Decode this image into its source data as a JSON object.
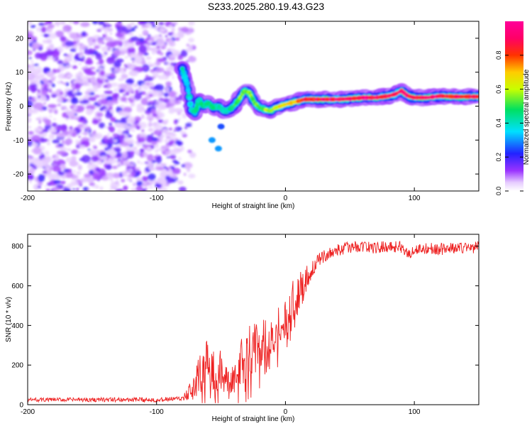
{
  "title": "S233.2025.280.19.43.G23",
  "colors": {
    "snr_line": "#ee2222",
    "axis": "#000000",
    "background": "#ffffff"
  },
  "chart_data": [
    {
      "type": "heatmap",
      "name": "spectrogram",
      "xlabel": "Height of straight line (km)",
      "ylabel": "Frequency (Hz)",
      "xlim": [
        -200,
        150
      ],
      "ylim": [
        -25,
        25
      ],
      "xticks": [
        -200,
        -100,
        0,
        100
      ],
      "xtick_labels": [
        "-200",
        "-100",
        "0",
        "100"
      ],
      "yticks": [
        -20,
        -10,
        0,
        10,
        20
      ],
      "ytick_labels": [
        "-20",
        "-10",
        "0",
        "10",
        "20"
      ],
      "colorbar": {
        "label": "Normalized spectral amplitude",
        "range": [
          0,
          1
        ],
        "ticks": [
          0.0,
          0.2,
          0.4,
          0.6,
          0.8
        ],
        "tick_labels": [
          "0.0",
          "0.2",
          "0.4",
          "0.6",
          "0.8"
        ]
      },
      "noise_region_x": [
        -200,
        -78
      ],
      "ridge": {
        "x": [
          -80,
          -76,
          -73,
          -70,
          -67,
          -64,
          -60,
          -56,
          -52,
          -48,
          -44,
          -40,
          -36,
          -32,
          -28,
          -24,
          -20,
          -16,
          -12,
          -8,
          -4,
          0,
          5,
          10,
          15,
          20,
          30,
          40,
          50,
          60,
          70,
          80,
          85,
          90,
          95,
          100,
          110,
          120,
          130,
          140,
          150
        ],
        "freq": [
          11,
          6,
          -1,
          -2,
          2,
          0,
          1,
          -0.5,
          0,
          -1.5,
          -1,
          0,
          2,
          4.5,
          4,
          1,
          -0.5,
          -1,
          -1.5,
          -0.5,
          0,
          0.5,
          1,
          1.5,
          2,
          2,
          2,
          2,
          2.2,
          2.5,
          2.5,
          3,
          3.5,
          4.5,
          3,
          2.5,
          2.5,
          3,
          2.8,
          2.8,
          2.8
        ],
        "amplitude": [
          0.45,
          0.35,
          0.4,
          0.5,
          0.45,
          0.5,
          0.45,
          0.5,
          0.45,
          0.4,
          0.45,
          0.5,
          0.55,
          0.55,
          0.6,
          0.55,
          0.55,
          0.6,
          0.6,
          0.65,
          0.7,
          0.7,
          0.75,
          0.8,
          0.85,
          0.9,
          0.95,
          0.95,
          0.9,
          0.95,
          0.95,
          0.95,
          0.9,
          0.95,
          0.95,
          0.9,
          0.95,
          0.95,
          0.9,
          0.95,
          0.9
        ]
      },
      "spots": [
        {
          "x": -57,
          "freq": -10,
          "amplitude": 0.3
        },
        {
          "x": -52,
          "freq": -12.5,
          "amplitude": 0.3
        },
        {
          "x": -50,
          "freq": -6,
          "amplitude": 0.25
        }
      ]
    },
    {
      "type": "line",
      "name": "snr",
      "xlabel": "Height of straight line (km)",
      "ylabel": "SNR (10 * v/v)",
      "xlim": [
        -200,
        150
      ],
      "ylim": [
        0,
        860
      ],
      "xticks": [
        -200,
        -100,
        0,
        100
      ],
      "xtick_labels": [
        "-200",
        "-100",
        "0",
        "100"
      ],
      "yticks": [
        0,
        200,
        400,
        600,
        800
      ],
      "ytick_labels": [
        "0",
        "200",
        "400",
        "600",
        "800"
      ],
      "trend": {
        "x": [
          -200,
          -150,
          -100,
          -80,
          -75,
          -70,
          -65,
          -60,
          -55,
          -50,
          -45,
          -40,
          -35,
          -30,
          -25,
          -20,
          -15,
          -10,
          -5,
          0,
          5,
          10,
          15,
          20,
          25,
          30,
          40,
          50,
          60,
          70,
          80,
          90,
          95,
          100,
          110,
          120,
          130,
          150
        ],
        "y": [
          25,
          25,
          25,
          30,
          60,
          100,
          150,
          200,
          150,
          180,
          120,
          150,
          200,
          250,
          280,
          300,
          320,
          340,
          380,
          420,
          480,
          560,
          620,
          680,
          720,
          750,
          780,
          795,
          800,
          790,
          800,
          795,
          760,
          780,
          790,
          785,
          790,
          795
        ]
      },
      "variability": {
        "x": [
          -200,
          -80,
          -75,
          -70,
          -65,
          -60,
          -55,
          -50,
          -45,
          -40,
          -35,
          -30,
          -25,
          -20,
          -15,
          -10,
          -5,
          0,
          5,
          10,
          15,
          20,
          25,
          30,
          150
        ],
        "amplitude": [
          10,
          12,
          40,
          80,
          140,
          180,
          120,
          100,
          60,
          90,
          130,
          150,
          140,
          130,
          120,
          110,
          120,
          150,
          160,
          120,
          80,
          50,
          40,
          30,
          30
        ]
      }
    }
  ]
}
